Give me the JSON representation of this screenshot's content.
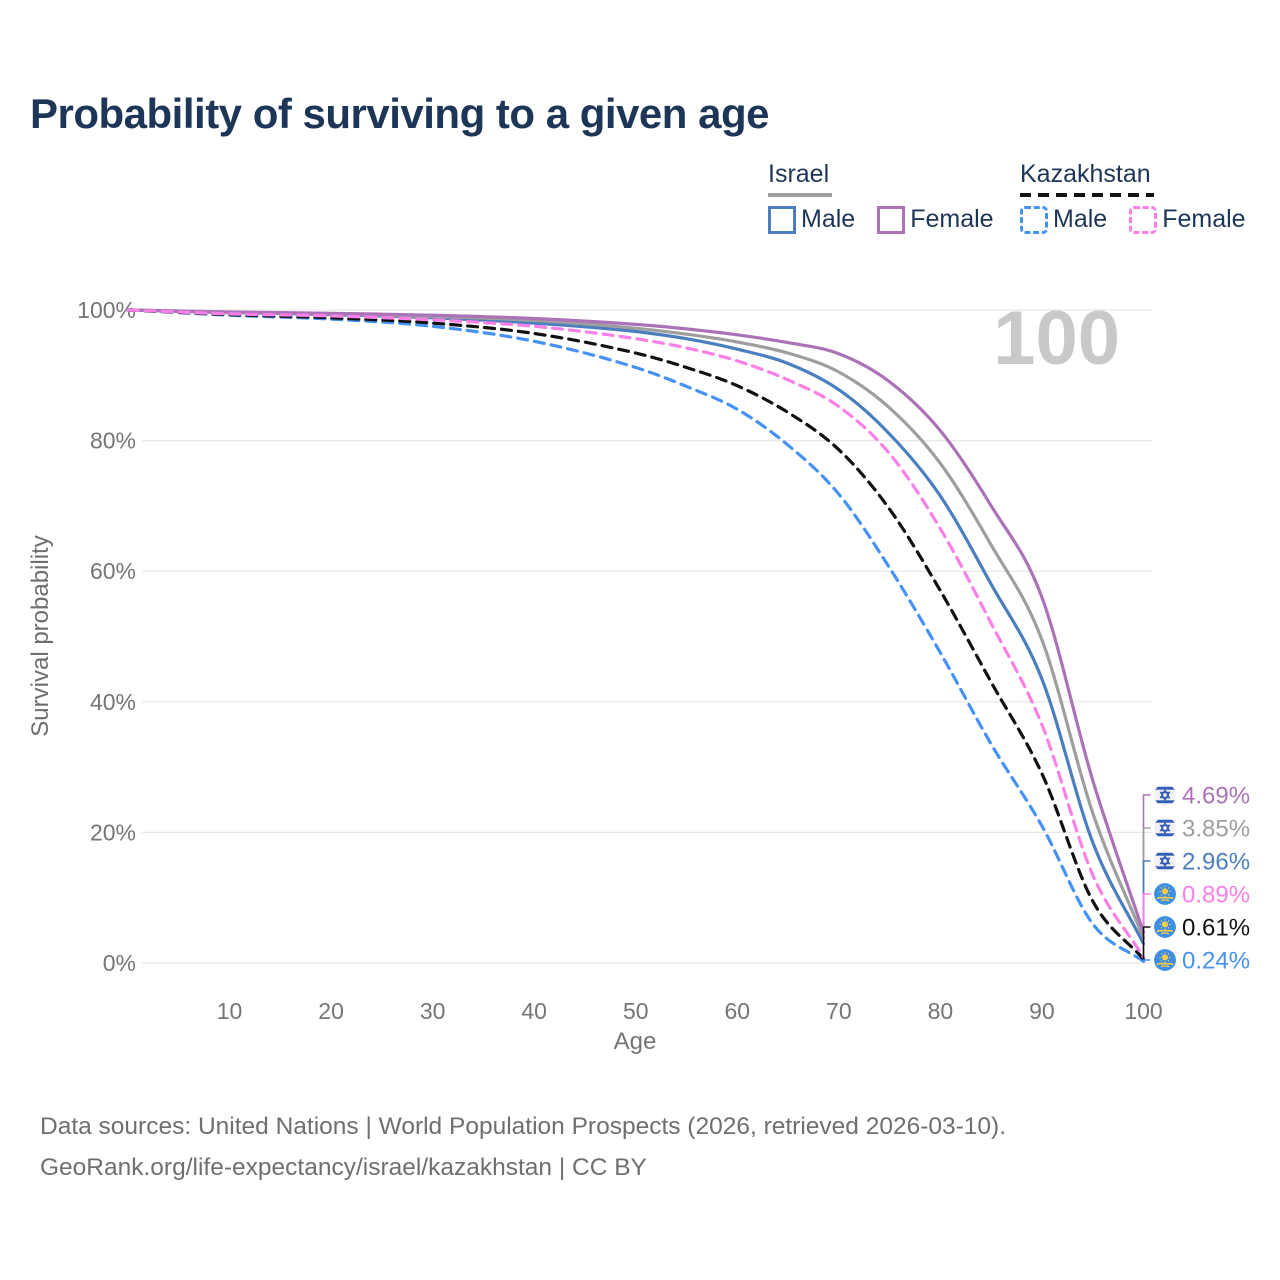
{
  "header": {
    "title": "Probability of surviving to a given age"
  },
  "legend": {
    "groups": [
      {
        "label": "Israel",
        "rule_style": "solid",
        "rule_color": "#9E9E9E",
        "items": [
          {
            "label": "Male",
            "color": "#4A7EBE",
            "dashed": false
          },
          {
            "label": "Female",
            "color": "#AC72B8",
            "dashed": false
          }
        ]
      },
      {
        "label": "Kazakhstan",
        "rule_style": "dashed",
        "rule_color": "#111111",
        "items": [
          {
            "label": "Male",
            "color": "#4692F4",
            "dashed": true
          },
          {
            "label": "Female",
            "color": "#FA80E8",
            "dashed": true
          }
        ]
      }
    ]
  },
  "chart_data": {
    "type": "line",
    "title": "Probability of surviving to a given age",
    "xlabel": "Age",
    "ylabel": "Survival probability",
    "watermark": "100",
    "xlim": [
      0,
      100
    ],
    "ylim": [
      0,
      100
    ],
    "grid": "horizontal",
    "x_ticks": [
      10,
      20,
      30,
      40,
      50,
      60,
      70,
      80,
      90,
      100
    ],
    "y_ticks": [
      {
        "label": "0%",
        "value": 0
      },
      {
        "label": "20%",
        "value": 20
      },
      {
        "label": "40%",
        "value": 40
      },
      {
        "label": "60%",
        "value": 60
      },
      {
        "label": "80%",
        "value": 80
      },
      {
        "label": "100%",
        "value": 100
      }
    ],
    "ages": [
      0,
      10,
      20,
      30,
      40,
      50,
      55,
      60,
      65,
      70,
      75,
      80,
      85,
      90,
      95,
      100
    ],
    "series": [
      {
        "name": "Israel Female",
        "country": "Israel",
        "sex": "Female",
        "flag": "israel",
        "color": "#AC72B8",
        "dashed": false,
        "end_label": "4.69%",
        "values": [
          100,
          99.7,
          99.5,
          99.2,
          98.7,
          97.8,
          97.1,
          96.2,
          95.0,
          93.3,
          89.0,
          81.5,
          70.0,
          56.0,
          28.0,
          4.69
        ]
      },
      {
        "name": "Israel Both sexes",
        "country": "Israel",
        "sex": "Both sexes",
        "flag": "israel",
        "color": "#9E9E9E",
        "dashed": false,
        "end_label": "3.85%",
        "values": [
          100,
          99.6,
          99.4,
          99.0,
          98.4,
          97.2,
          96.3,
          95.1,
          93.4,
          90.5,
          85.0,
          76.5,
          64.0,
          49.5,
          23.0,
          3.85
        ]
      },
      {
        "name": "Israel Male",
        "country": "Israel",
        "sex": "Male",
        "flag": "israel",
        "color": "#4A7EBE",
        "dashed": false,
        "end_label": "2.96%",
        "values": [
          100,
          99.6,
          99.3,
          98.8,
          98.0,
          96.7,
          95.6,
          94.0,
          91.8,
          87.8,
          81.0,
          71.5,
          58.0,
          43.5,
          18.5,
          2.96
        ]
      },
      {
        "name": "Kazakhstan Female",
        "country": "Kazakhstan",
        "sex": "Female",
        "flag": "kazakhstan",
        "color": "#FA80E8",
        "dashed": true,
        "end_label": "0.89%",
        "values": [
          100,
          99.4,
          99.1,
          98.5,
          97.5,
          95.6,
          94.2,
          92.2,
          89.3,
          85.2,
          78.0,
          66.5,
          52.0,
          36.5,
          13.5,
          0.89
        ]
      },
      {
        "name": "Kazakhstan Both sexes",
        "country": "Kazakhstan",
        "sex": "Both sexes",
        "flag": "kazakhstan",
        "color": "#111111",
        "dashed": true,
        "end_label": "0.61%",
        "values": [
          100,
          99.3,
          98.8,
          98.0,
          96.4,
          93.4,
          91.2,
          88.4,
          84.3,
          78.6,
          69.5,
          57.0,
          43.0,
          29.0,
          9.5,
          0.61
        ]
      },
      {
        "name": "Kazakhstan Male",
        "country": "Kazakhstan",
        "sex": "Male",
        "flag": "kazakhstan",
        "color": "#4692F4",
        "dashed": true,
        "end_label": "0.24%",
        "values": [
          100,
          99.2,
          98.6,
          97.5,
          95.2,
          91.2,
          88.3,
          84.8,
          79.3,
          71.8,
          60.5,
          47.5,
          33.5,
          21.0,
          6.0,
          0.24
        ]
      }
    ]
  },
  "footer": {
    "line1": "Data sources: United Nations | World Population Prospects (2026, retrieved 2026-03-10).",
    "line2": "GeoRank.org/life-expectancy/israel/kazakhstan | CC BY"
  }
}
